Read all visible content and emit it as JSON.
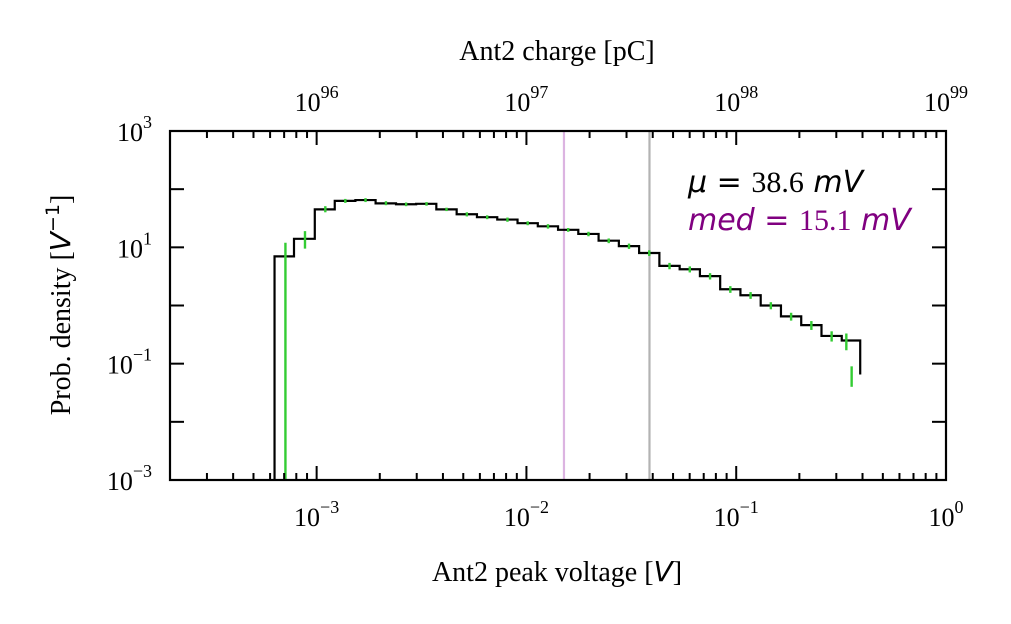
{
  "chart_data": {
    "type": "line",
    "step": true,
    "x_scale": "log",
    "y_scale": "log",
    "xlim": [
      0.0002,
      1
    ],
    "ylim": [
      0.001,
      1000
    ],
    "xlabel_text": "Ant2 peak voltage [",
    "xlabel_unit": "V",
    "xlabel_close": "]",
    "ylabel_text": "Prob. density [",
    "ylabel_unit": "V",
    "ylabel_exp": "−1",
    "ylabel_close": "]",
    "top_axis_label": "Ant2 charge [pC]",
    "x_ticks": [
      {
        "base": "10",
        "exp": "−3",
        "value": 0.001
      },
      {
        "base": "10",
        "exp": "−2",
        "value": 0.01
      },
      {
        "base": "10",
        "exp": "−1",
        "value": 0.1
      },
      {
        "base": "10",
        "exp": "0",
        "value": 1
      }
    ],
    "y_ticks": [
      {
        "base": "10",
        "exp": "−3",
        "value": 0.001
      },
      {
        "base": "10",
        "exp": "−1",
        "value": 0.1
      },
      {
        "base": "10",
        "exp": "1",
        "value": 10
      },
      {
        "base": "10",
        "exp": "3",
        "value": 1000
      }
    ],
    "top_ticks": [
      {
        "base": "10",
        "exp": "96",
        "value": 0.001
      },
      {
        "base": "10",
        "exp": "97",
        "value": 0.01
      },
      {
        "base": "10",
        "exp": "98",
        "value": 0.1
      },
      {
        "base": "10",
        "exp": "99",
        "value": 1
      }
    ],
    "bin_edges": [
      0.00063,
      0.00078,
      0.00098,
      0.00122,
      0.00153,
      0.00191,
      0.00239,
      0.00298,
      0.00372,
      0.00465,
      0.00581,
      0.00726,
      0.00907,
      0.01133,
      0.01415,
      0.01767,
      0.02208,
      0.02758,
      0.03445,
      0.04303,
      0.05375,
      0.06714,
      0.08386,
      0.10474,
      0.13083,
      0.16342,
      0.20412,
      0.25497,
      0.31847,
      0.39
    ],
    "density": [
      7.0,
      14.0,
      45.0,
      63.0,
      65.0,
      57.0,
      55.0,
      56.0,
      45.0,
      37.0,
      33.0,
      30.0,
      26.0,
      23.0,
      20.0,
      17.0,
      13.0,
      10.5,
      8.0,
      4.8,
      4.2,
      3.2,
      1.9,
      1.5,
      1.0,
      0.65,
      0.46,
      0.3,
      0.25,
      0.065
    ],
    "error_bars": [
      {
        "x": 0.00071,
        "low": 0.001,
        "high": 12
      },
      {
        "x": 0.00088,
        "low": 9.5,
        "high": 19
      },
      {
        "x": 0.0011,
        "low": 40,
        "high": 51
      },
      {
        "x": 0.00137,
        "low": 58,
        "high": 68
      },
      {
        "x": 0.00171,
        "low": 60,
        "high": 70
      },
      {
        "x": 0.00214,
        "low": 53,
        "high": 62
      },
      {
        "x": 0.00267,
        "low": 51,
        "high": 59
      },
      {
        "x": 0.00334,
        "low": 52,
        "high": 60
      },
      {
        "x": 0.00416,
        "low": 42,
        "high": 48
      },
      {
        "x": 0.0052,
        "low": 34,
        "high": 40
      },
      {
        "x": 0.0065,
        "low": 30.5,
        "high": 35.5
      },
      {
        "x": 0.00812,
        "low": 27.5,
        "high": 32.5
      },
      {
        "x": 0.01014,
        "low": 24,
        "high": 28
      },
      {
        "x": 0.01267,
        "low": 21,
        "high": 25
      },
      {
        "x": 0.01582,
        "low": 18.5,
        "high": 21.5
      },
      {
        "x": 0.01976,
        "low": 15.5,
        "high": 18.5
      },
      {
        "x": 0.02468,
        "low": 11.8,
        "high": 14.2
      },
      {
        "x": 0.03083,
        "low": 9.4,
        "high": 11.6
      },
      {
        "x": 0.03851,
        "low": 7.1,
        "high": 8.9
      },
      {
        "x": 0.04809,
        "low": 4.2,
        "high": 5.4
      },
      {
        "x": 0.06008,
        "low": 3.7,
        "high": 4.7
      },
      {
        "x": 0.07505,
        "low": 2.8,
        "high": 3.6
      },
      {
        "x": 0.09374,
        "low": 1.65,
        "high": 2.15
      },
      {
        "x": 0.11709,
        "low": 1.3,
        "high": 1.7
      },
      {
        "x": 0.14625,
        "low": 0.86,
        "high": 1.14
      },
      {
        "x": 0.18268,
        "low": 0.55,
        "high": 0.75
      },
      {
        "x": 0.22818,
        "low": 0.38,
        "high": 0.54
      },
      {
        "x": 0.28502,
        "low": 0.24,
        "high": 0.36
      },
      {
        "x": 0.3349,
        "low": 0.17,
        "high": 0.33
      },
      {
        "x": 0.355,
        "low": 0.04,
        "high": 0.09
      }
    ],
    "vlines": [
      {
        "name": "median",
        "x": 0.0151,
        "color": "#dcb4e1"
      },
      {
        "name": "mean",
        "x": 0.0386,
        "color": "#b3b3b3"
      }
    ],
    "annotations": {
      "mu_symbol": "μ",
      "mu_eq": " = ",
      "mu_value": "38.6",
      "mu_unit": " mV",
      "med_symbol": "med",
      "med_eq": " = ",
      "med_value": "15.1",
      "med_unit": " mV"
    },
    "colors": {
      "histogram": "#000000",
      "error_bars": "#33cc33",
      "median_line": "#dcb4e1",
      "mean_line": "#b3b3b3",
      "mu_text": "#000000",
      "med_text": "#800080"
    },
    "grid": false,
    "legend": "none"
  }
}
